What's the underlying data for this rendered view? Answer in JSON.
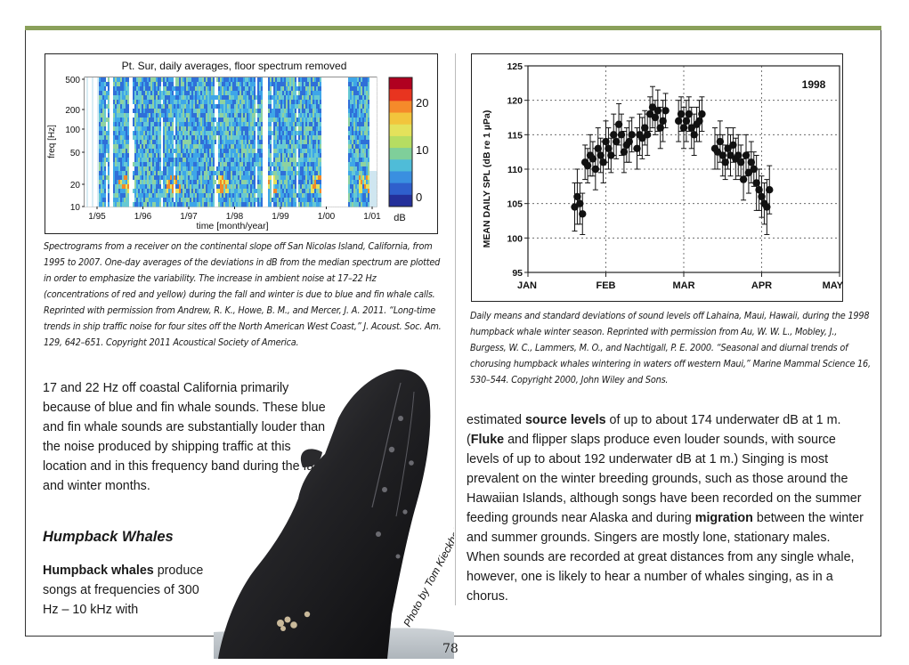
{
  "spectrogram": {
    "title": "Pt. Sur, daily averages, floor spectrum removed",
    "ylabel": "freq [Hz]",
    "xlabel": "time [month/year]",
    "yticks": [
      "500",
      "200",
      "100",
      "50",
      "20",
      "10"
    ],
    "xticks": [
      "1/95",
      "1/96",
      "1/97",
      "1/98",
      "1/99",
      "1/00",
      "1/01"
    ],
    "colorbar_ticks": [
      "20",
      "10",
      "0"
    ],
    "colorbar_unit": "dB",
    "colors": [
      "#2a3db5",
      "#2f6fd8",
      "#3ea6e8",
      "#67c9d3",
      "#8ed2a0",
      "#e4e25b",
      "#f08a2a",
      "#c8202a"
    ]
  },
  "caption_left": "Spectrograms from a receiver on the continental slope off San Nicolas Island, California, from 1995 to 2007. One-day averages of the deviations in dB from the median spectrum are plotted in order to emphasize the variability. The increase in ambient noise at 17–22 Hz (concentrations of red and yellow) during the fall and winter is due to blue and fin whale calls. Reprinted with permission from Andrew, R. K., Howe, B. M., and Mercer, J. A. 2011. “Long-time trends in ship traffic noise for four sites off the North American West Coast,” J. Acoust. Soc. Am. 129, 642–651. Copyright 2011 Acoustical Society of America.",
  "caption_right": "Daily means and standard deviations of sound levels off Lahaina, Maui, Hawaii, during the 1998 humpback whale winter season. Reprinted with permission from Au, W. W. L., Mobley, J., Burgess, W. C., Lammers, M. O., and Nachtigall, P. E. 2000. “Seasonal and diurnal trends of chorusing humpback whales wintering in waters off western Maui,” Marine Mammal Science 16, 530–544. Copyright 2000, John Wiley and Sons.",
  "left_para": "17 and 22 Hz off coastal California primarily because of blue and fin whale sounds. These blue and fin whale sounds are substantially louder than the noise produced by shipping traffic at this location and in this frequency band during the fall and winter months.",
  "heading": "Humpback Whales",
  "hump_para": {
    "bold": "Humpback whales",
    "rest": " produce songs at frequencies of 300 Hz – 10 kHz with"
  },
  "right_para": {
    "t1": "estimated ",
    "b1": "source levels",
    "t2": " of up to about 174 underwater dB at 1 m. (",
    "b2": "Fluke",
    "t3": " and flipper slaps produce even louder sounds, with source levels of up to about 192 underwater dB at 1 m.) Singing is most prevalent on the winter breeding grounds, such as those around the Hawaiian Islands, although songs have been recorded on the summer feeding grounds near Alaska and during ",
    "b3": "migration",
    "t4": " between the winter and summer grounds. Singers are mostly lone, stationary males. When sounds are recorded at great distances from any single whale, however, one is likely to hear a number of whales singing, as in a chorus."
  },
  "photo_credit": "Photo by Tom Kieckhefer.",
  "page_number": "78",
  "chart_data": {
    "type": "scatter",
    "title": "",
    "year_label": "1998",
    "ylabel": "MEAN DAILY SPL (dB re 1 µPa)",
    "xlabel": "",
    "x_ticks": [
      "JAN",
      "FEB",
      "MAR",
      "APR",
      "MAY"
    ],
    "y_ticks": [
      95,
      100,
      105,
      110,
      115,
      120,
      125
    ],
    "ylim": [
      95,
      125
    ],
    "xlim_days": [
      0,
      120
    ],
    "grid": true,
    "series": [
      {
        "x_day": [
          18,
          19,
          20,
          21,
          22,
          23,
          24,
          25,
          26,
          27,
          28,
          29,
          30,
          31,
          32,
          33,
          34,
          35,
          36,
          37,
          38,
          39,
          40,
          42,
          43,
          44,
          45,
          46,
          47,
          48,
          49,
          50,
          51,
          52,
          53,
          58,
          59,
          60,
          61,
          62,
          63,
          64,
          65,
          66,
          67,
          72,
          73,
          74,
          75,
          76,
          77,
          78,
          79,
          80,
          81,
          82,
          83,
          84,
          85,
          86,
          87,
          88,
          89,
          90,
          91,
          92,
          93
        ],
        "y": [
          104.5,
          106,
          105,
          103.5,
          111,
          110.5,
          112,
          111.5,
          110,
          113,
          112,
          111,
          114,
          113,
          112,
          115,
          114,
          116.5,
          115,
          112.5,
          113.5,
          114,
          115,
          113,
          115,
          114.5,
          116,
          115,
          118,
          119,
          117.5,
          118.5,
          116,
          117,
          118.5,
          117,
          118,
          116,
          117,
          118,
          116,
          115,
          116.5,
          117,
          118,
          113,
          112.5,
          114,
          112,
          111,
          113,
          112,
          113.5,
          111.5,
          112,
          111,
          108.5,
          112,
          109.5,
          111,
          110,
          108,
          107,
          106,
          105,
          104.5,
          107
        ],
        "err": [
          3.5,
          4,
          3,
          3,
          2.5,
          2.5,
          3,
          2.5,
          3,
          3,
          2.5,
          3,
          3,
          3,
          2.5,
          3,
          2.5,
          3,
          3,
          3,
          2.5,
          3,
          2.5,
          3,
          3,
          3,
          2.5,
          3,
          2.5,
          3,
          2.5,
          3,
          3,
          3,
          2.5,
          3,
          2.5,
          3,
          3,
          2.5,
          3,
          3,
          2.5,
          3,
          2.5,
          3,
          2.5,
          3,
          3,
          2.5,
          3,
          3,
          2.5,
          3,
          3,
          2.5,
          3,
          3,
          3,
          3,
          2.5,
          4,
          3,
          3,
          3,
          4,
          3.5
        ]
      }
    ]
  }
}
